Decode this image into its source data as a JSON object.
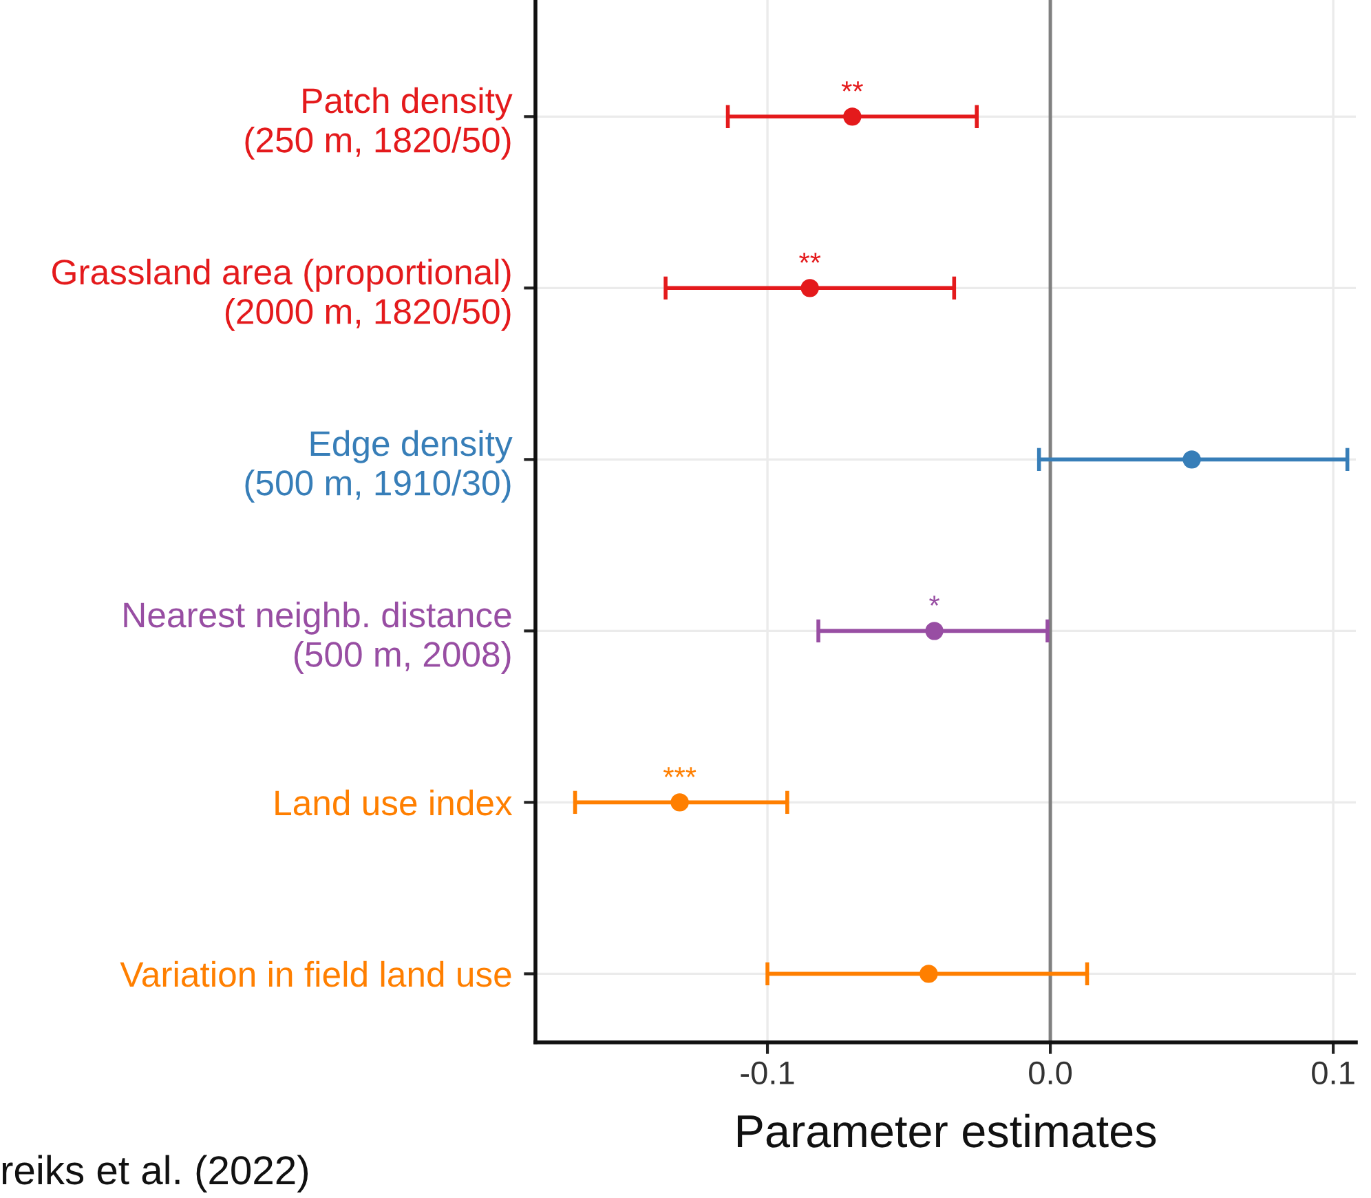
{
  "chart_data": {
    "type": "scatter",
    "orientation": "horizontal",
    "xlabel": "Parameter estimates",
    "categories": [
      "Patch density\n(250 m, 1820/50)",
      "Grassland area (proportional)\n(2000 m, 1820/50)",
      "Edge density\n(500 m, 1910/30)",
      "Nearest neighb. distance\n(500 m, 2008)",
      "Land use index",
      "Variation in field land use"
    ],
    "values": [
      -0.07,
      -0.085,
      0.05,
      -0.041,
      -0.131,
      -0.043
    ],
    "errors": [
      [
        -0.114,
        -0.026
      ],
      [
        -0.136,
        -0.034
      ],
      [
        -0.004,
        0.105
      ],
      [
        -0.082,
        -0.001
      ],
      [
        -0.168,
        -0.093
      ],
      [
        -0.1,
        0.013
      ]
    ],
    "colors": [
      "#e41a1c",
      "#e41a1c",
      "#377eb8",
      "#984ea3",
      "#ff7f00",
      "#ff7f00"
    ],
    "xlim": [
      -0.182,
      0.108
    ],
    "xticks": [
      {
        "value": -0.1,
        "label": "-0.1"
      },
      {
        "value": 0.0,
        "label": "0.0"
      },
      {
        "value": 0.1,
        "label": "0.1"
      }
    ],
    "grid": true,
    "marker": "circle",
    "ref_lines": [
      {
        "axis": "x",
        "value": 0,
        "color": "#808080"
      }
    ],
    "annotations": [
      {
        "text": "**",
        "x": -0.07,
        "y": "Patch density\n(250 m, 1820/50)"
      },
      {
        "text": "**",
        "x": -0.085,
        "y": "Grassland area (proportional)\n(2000 m, 1820/50)"
      },
      {
        "text": "*",
        "x": -0.041,
        "y": "Nearest neighb. distance\n(500 m, 2008)"
      },
      {
        "text": "***",
        "x": -0.131,
        "y": "Land use index"
      },
      "reiks et al. (2022)"
    ]
  }
}
